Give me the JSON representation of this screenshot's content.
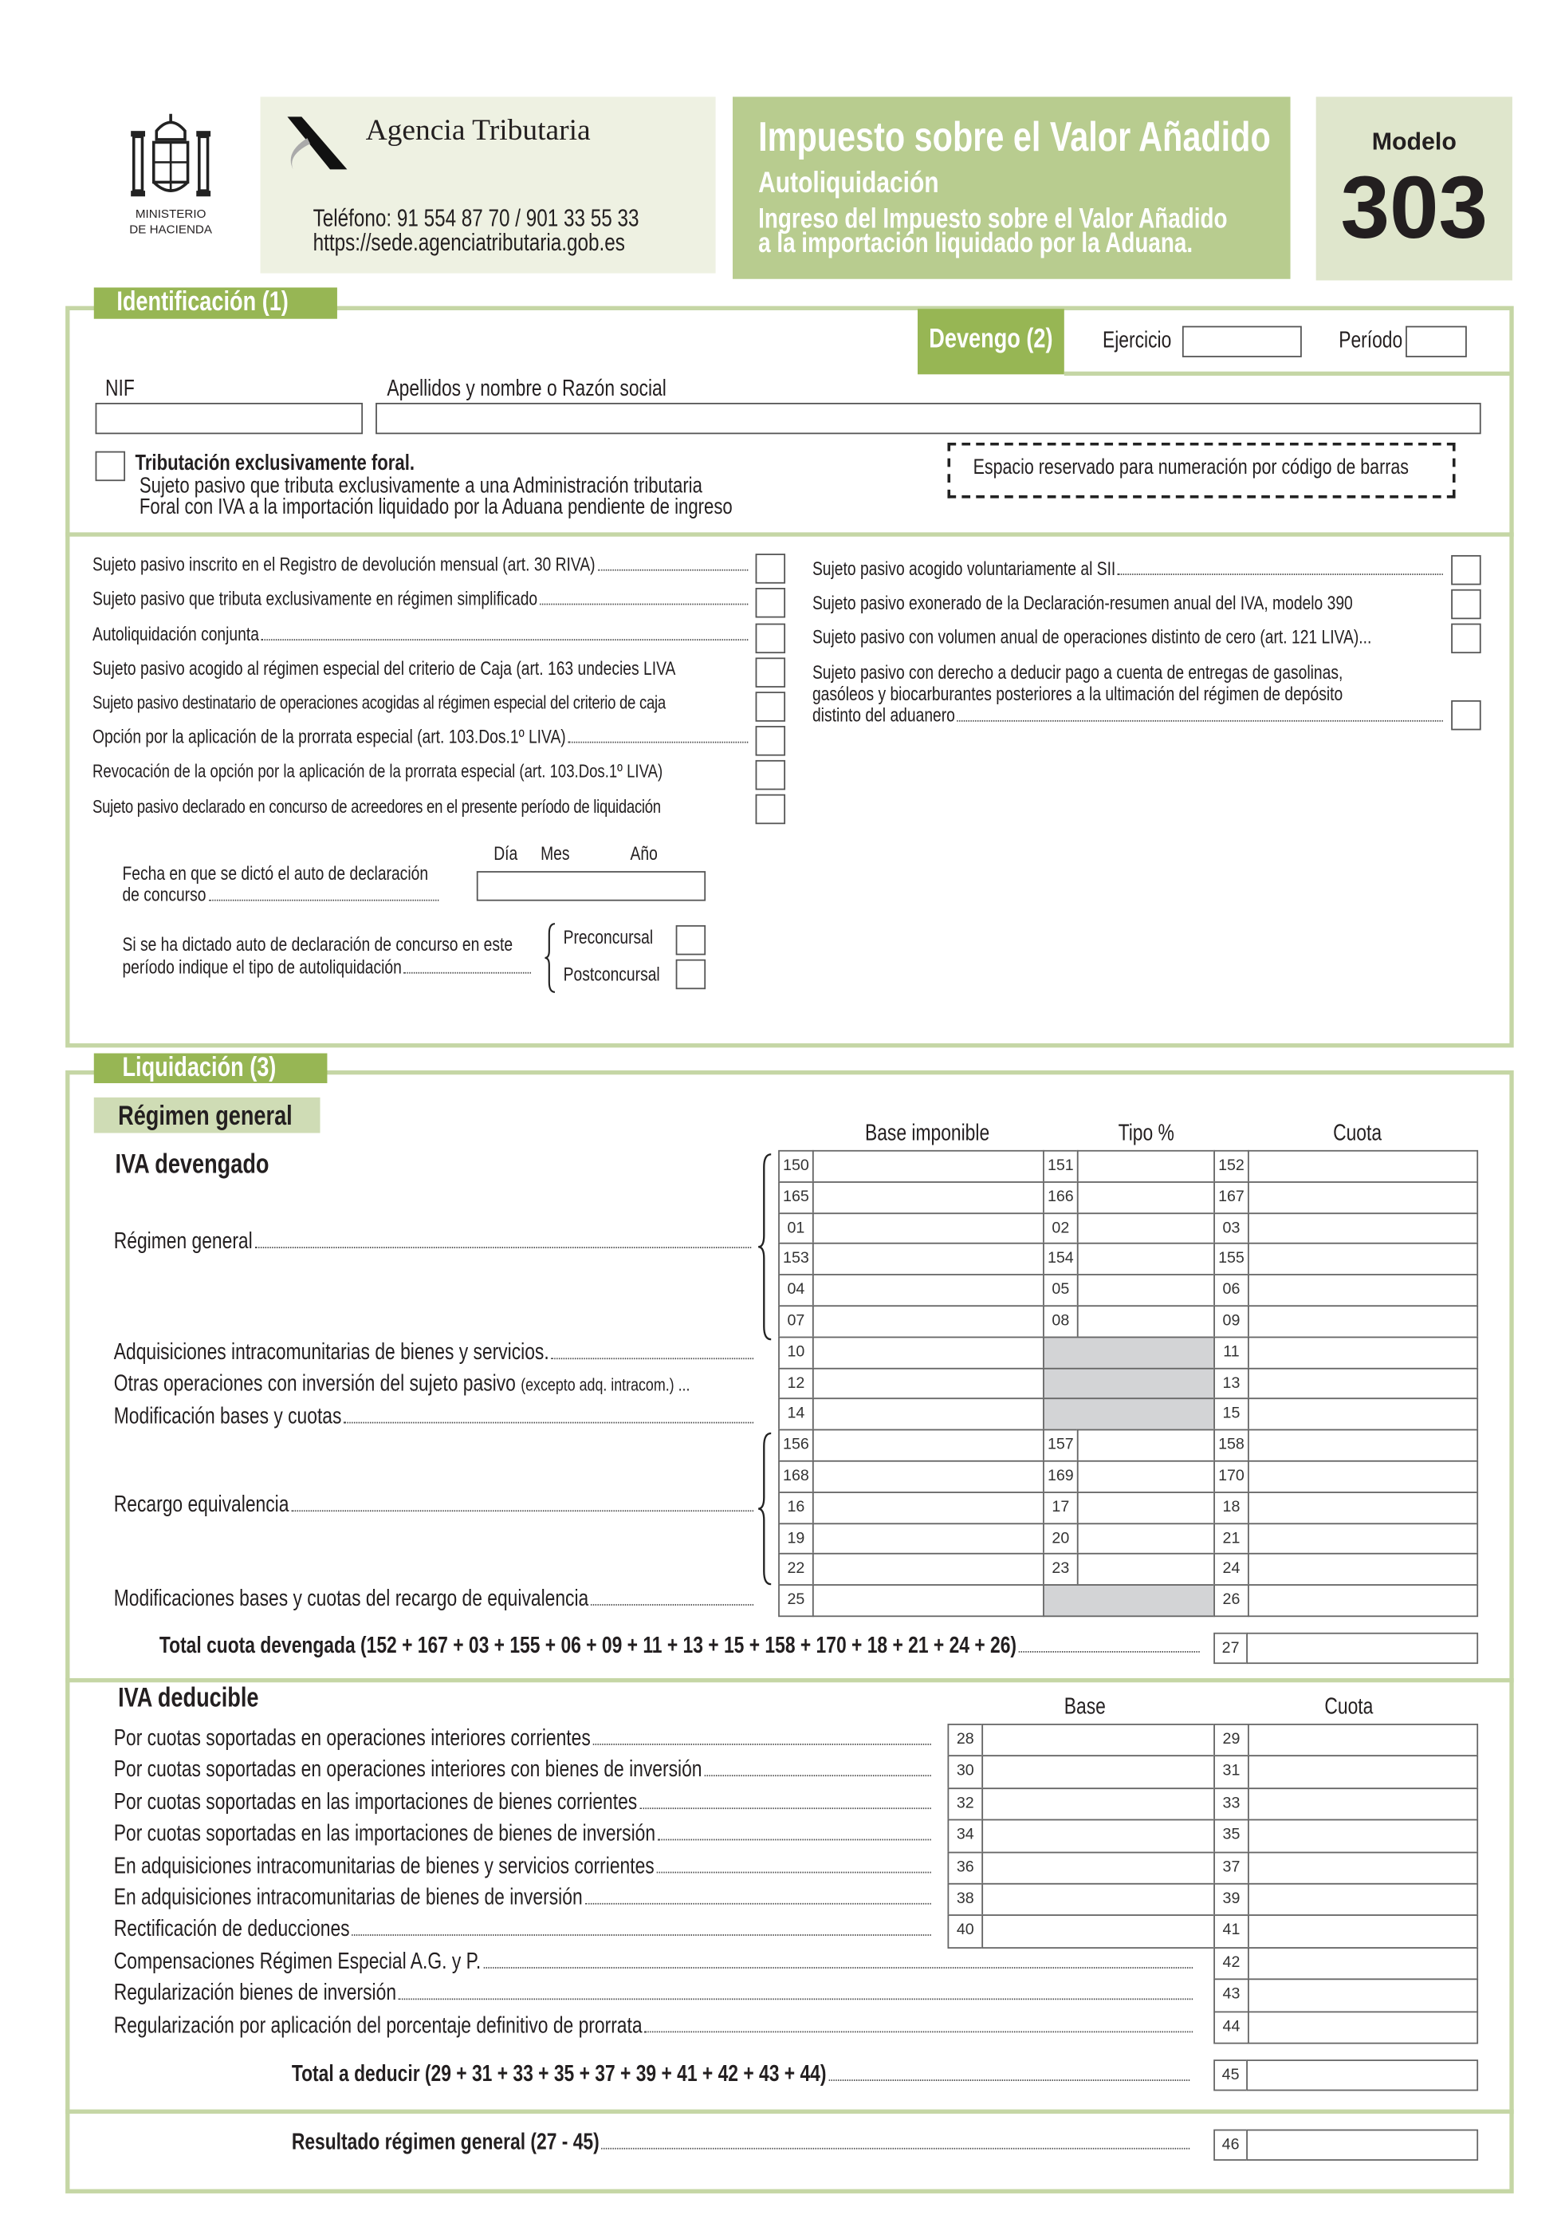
{
  "header": {
    "ministry_lines": [
      "MINISTERIO",
      "DE HACIENDA"
    ],
    "agency_name": "Agencia Tributaria",
    "phone": "Teléfono: 91 554 87 70 / 901 33 55 33",
    "url": "https://sede.agenciatributaria.gob.es",
    "title": "Impuesto sobre el Valor Añadido",
    "subtitle": "Autoliquidación",
    "description_lines": [
      "Ingreso del Impuesto sobre el Valor Añadido",
      "a la importación liquidado por la Aduana."
    ],
    "modelo_label": "Modelo",
    "modelo_number": "303"
  },
  "colors": {
    "tab_green": "#97b654",
    "frame_green": "#c5d6a5",
    "title_bg": "#b8cc8f",
    "agency_bg": "#eef1e2",
    "modelo_bg": "#dfe6cc",
    "gray_cell": "#d3d4d6"
  },
  "identificacion": {
    "tab": "Identificación (1)",
    "devengo": {
      "tab": "Devengo (2)",
      "ejercicio": "Ejercicio",
      "periodo": "Período",
      "ejercicio_value": "",
      "periodo_value": ""
    },
    "nif_label": "NIF",
    "nif_value": "",
    "razon_label": "Apellidos y nombre o Razón social",
    "razon_value": "",
    "foral": {
      "title": "Tributación exclusivamente foral.",
      "line1": "Sujeto pasivo que tributa exclusivamente a una Administración tributaria",
      "line2": "Foral con IVA a la importación liquidado por la Aduana pendiente de ingreso"
    },
    "barcode_text": "Espacio reservado para numeración por código de barras",
    "left_checks": [
      "Sujeto pasivo inscrito en el Registro de devolución mensual (art. 30 RIVA)",
      "Sujeto pasivo que tributa exclusivamente en régimen simplificado",
      "Autoliquidación conjunta",
      "Sujeto pasivo acogido al régimen especial del criterio de Caja (art. 163 undecies LIVA",
      "Sujeto pasivo destinatario de operaciones acogidas al régimen especial del criterio de caja",
      "Opción por la aplicación de la prorrata especial (art. 103.Dos.1º LIVA)",
      "Revocación de la opción por la aplicación de la prorrata especial (art. 103.Dos.1º LIVA)",
      "Sujeto pasivo declarado en concurso de acreedores en el presente período de liquidación"
    ],
    "right_checks": [
      "Sujeto pasivo acogido voluntariamente al SII",
      "Sujeto pasivo exonerado de la Declaración-resumen anual del IVA, modelo 390",
      "Sujeto pasivo con volumen anual de operaciones distinto de cero (art. 121 LIVA)...",
      "Sujeto pasivo con derecho a deducir pago a cuenta de entregas de gasolinas,",
      "gasóleos y biocarburantes posteriores a la ultimación del régimen de depósito",
      "distinto del aduanero"
    ],
    "fecha": {
      "line1": "Fecha en que se dictó el auto de declaración",
      "line2": "de concurso",
      "dia": "Día",
      "mes": "Mes",
      "anio": "Año",
      "value": ""
    },
    "concurso": {
      "line1": "Si se ha dictado auto de declaración de concurso en este",
      "line2": "período indique el tipo de autoliquidación",
      "pre": "Preconcursal",
      "post": "Postconcursal"
    }
  },
  "liquidacion": {
    "tab": "Liquidación (3)",
    "regimen_tab": "Régimen general",
    "devengado": {
      "heading": "IVA devengado",
      "col_base": "Base imponible",
      "col_tipo": "Tipo %",
      "col_cuota": "Cuota",
      "label_regimen": "Régimen general",
      "label_adq": "Adquisiciones intracomunitarias de bienes y servicios.",
      "label_otras": "Otras operaciones con inversión del sujeto pasivo",
      "label_otras_small": "(excepto adq. intracom.) ...",
      "label_mod": "Modificación bases y cuotas",
      "label_recargo": "Recargo equivalencia",
      "label_mod_recargo": "Modificaciones bases y cuotas del recargo de equivalencia",
      "rows": [
        [
          "150",
          "151",
          "152"
        ],
        [
          "165",
          "166",
          "167"
        ],
        [
          "01",
          "02",
          "03"
        ],
        [
          "153",
          "154",
          "155"
        ],
        [
          "04",
          "05",
          "06"
        ],
        [
          "07",
          "08",
          "09"
        ],
        [
          "10",
          null,
          "11"
        ],
        [
          "12",
          null,
          "13"
        ],
        [
          "14",
          null,
          "15"
        ],
        [
          "156",
          "157",
          "158"
        ],
        [
          "168",
          "169",
          "170"
        ],
        [
          "16",
          "17",
          "18"
        ],
        [
          "19",
          "20",
          "21"
        ],
        [
          "22",
          "23",
          "24"
        ],
        [
          "25",
          null,
          "26"
        ]
      ],
      "total_label": "Total cuota devengada (152 + 167 + 03 + 155  + 06 + 09 + 11 + 13 + 15 + 158 + 170 + 18 + 21 + 24 + 26)",
      "total_code": "27"
    },
    "deducible": {
      "heading": "IVA deducible",
      "col_base": "Base",
      "col_cuota": "Cuota",
      "rows": [
        {
          "label": "Por cuotas soportadas en operaciones interiores corrientes",
          "codes": [
            "28",
            "29"
          ]
        },
        {
          "label": "Por cuotas soportadas en operaciones interiores con bienes de inversión",
          "codes": [
            "30",
            "31"
          ]
        },
        {
          "label": "Por cuotas soportadas en las importaciones de bienes corrientes",
          "codes": [
            "32",
            "33"
          ]
        },
        {
          "label": "Por cuotas soportadas en las importaciones de bienes de inversión",
          "codes": [
            "34",
            "35"
          ]
        },
        {
          "label": "En adquisiciones intracomunitarias de bienes y servicios corrientes",
          "codes": [
            "36",
            "37"
          ]
        },
        {
          "label": "En adquisiciones intracomunitarias de bienes de inversión",
          "codes": [
            "38",
            "39"
          ]
        },
        {
          "label": "Rectificación de deducciones",
          "codes": [
            "40",
            "41"
          ]
        },
        {
          "label": "Compensaciones Régimen Especial A.G. y P.",
          "codes": [
            null,
            "42"
          ]
        },
        {
          "label": "Regularización bienes de inversión",
          "codes": [
            null,
            "43"
          ]
        },
        {
          "label": "Regularización por aplicación del porcentaje definitivo de prorrata",
          "codes": [
            null,
            "44"
          ]
        }
      ],
      "total_label": "Total a deducir (29 + 31 + 33 + 35 + 37 + 39 + 41 + 42 + 43 + 44)",
      "total_code": "45"
    },
    "resultado_label": "Resultado régimen general (27 - 45)",
    "resultado_code": "46"
  }
}
